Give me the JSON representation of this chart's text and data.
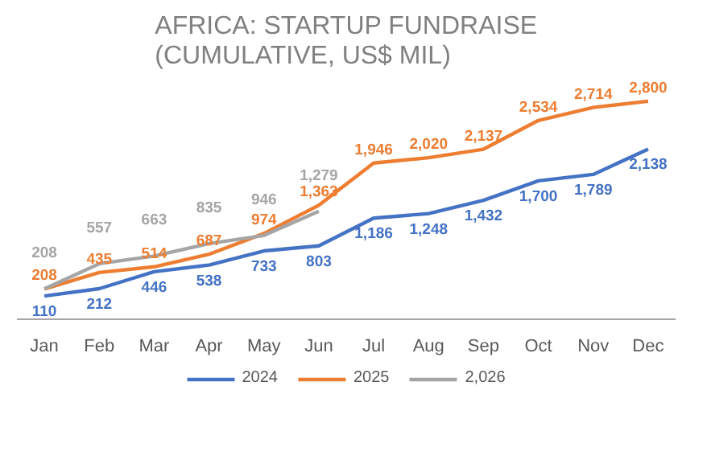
{
  "chart_data": {
    "type": "line",
    "title": "AFRICA: STARTUP FUNDRAISE (CUMULATIVE, US$ MIL)",
    "categories": [
      "Jan",
      "Feb",
      "Mar",
      "Apr",
      "May",
      "Jun",
      "Jul",
      "Aug",
      "Sep",
      "Oct",
      "Nov",
      "Dec"
    ],
    "series": [
      {
        "name": "2024",
        "color": "#4472c4",
        "values": [
          110,
          212,
          446,
          538,
          733,
          803,
          1186,
          1248,
          1432,
          1700,
          1789,
          2138
        ],
        "value_labels": [
          "110",
          "212",
          "446",
          "538",
          "733",
          "803",
          "1,186",
          "1,248",
          "1,432",
          "1,700",
          "1,789",
          "2,138"
        ]
      },
      {
        "name": "2025",
        "color": "#ed7d31",
        "values": [
          208,
          435,
          514,
          687,
          974,
          1363,
          1946,
          2020,
          2137,
          2534,
          2714,
          2800
        ],
        "value_labels": [
          "208",
          "435",
          "514",
          "687",
          "974",
          "1,363",
          "1,946",
          "2,020",
          "2,137",
          "2,534",
          "2,714",
          "2,800"
        ]
      },
      {
        "name": "2,026",
        "color": "#a5a5a5",
        "values": [
          208,
          557,
          663,
          835,
          946,
          1279,
          null,
          null,
          null,
          null,
          null,
          null
        ],
        "value_labels": [
          "208",
          "557",
          "663",
          "835",
          "946",
          "1,279",
          null,
          null,
          null,
          null,
          null,
          null
        ]
      }
    ],
    "legend": "bottom",
    "tick_labels": "x"
  }
}
